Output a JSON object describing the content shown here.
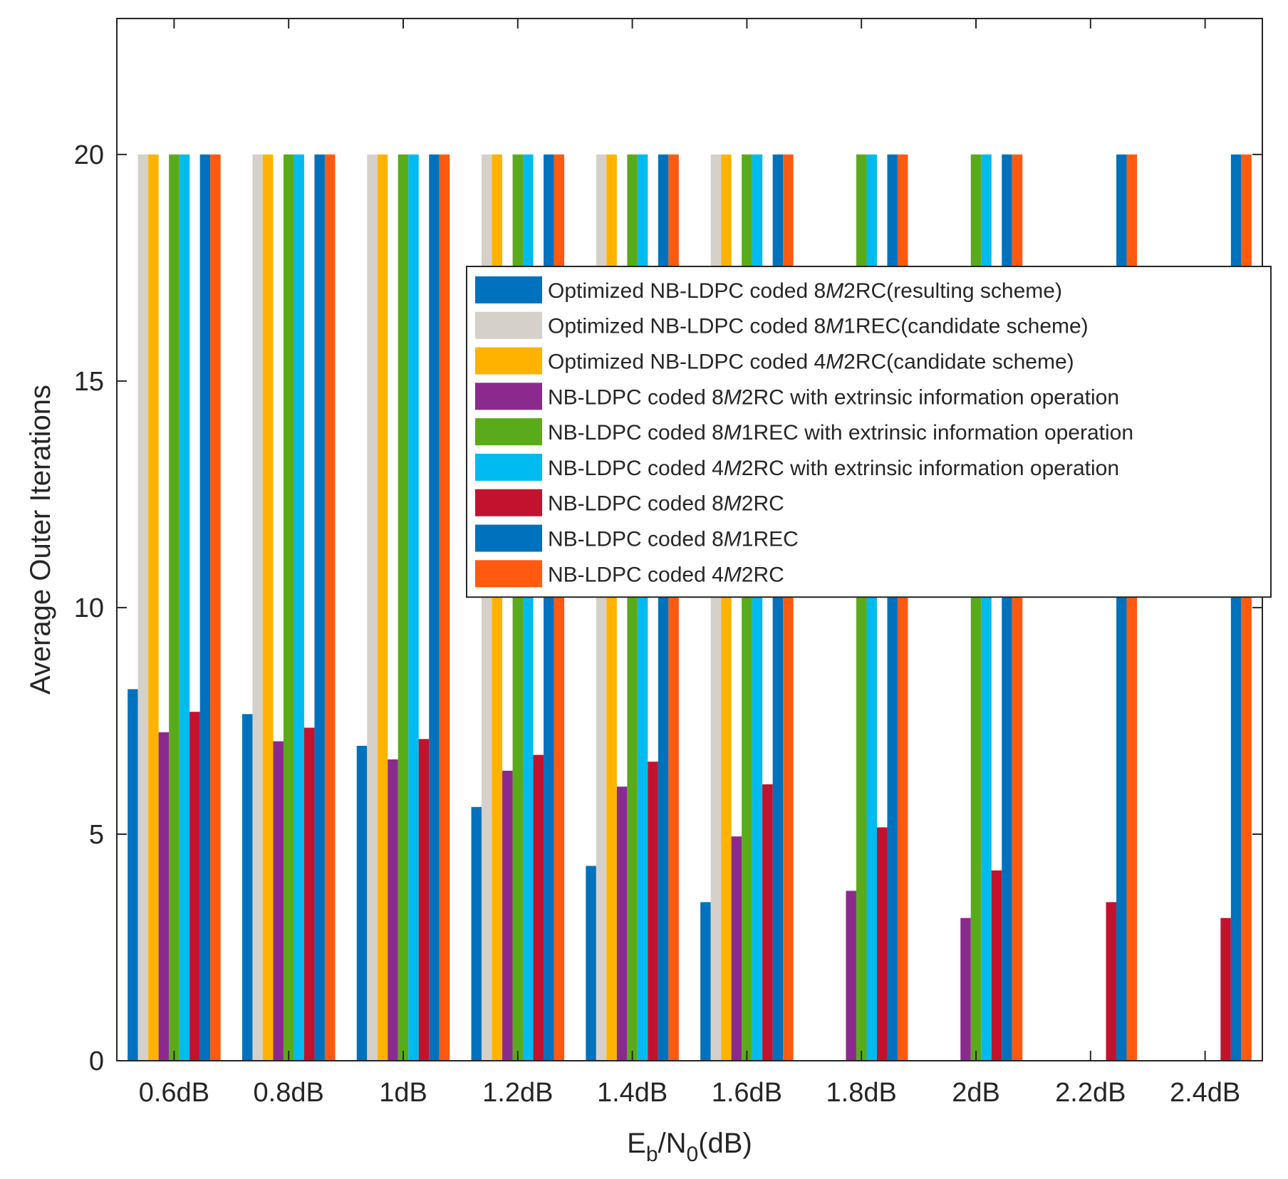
{
  "chart_data": {
    "type": "bar",
    "title": "",
    "xlabel": {
      "main": "E",
      "sub1": "b",
      "mid": "/N",
      "sub2": "0",
      "tail": "(dB)"
    },
    "ylabel": "Average Outer Iterations",
    "ylim": [
      0,
      23
    ],
    "yticks": [
      "0",
      "5",
      "10",
      "15",
      "20"
    ],
    "ytick_values": [
      0,
      5,
      10,
      15,
      20
    ],
    "grid": false,
    "legend_position": "center-right",
    "categories": [
      "0.6dB",
      "0.8dB",
      "1dB",
      "1.2dB",
      "1.4dB",
      "1.6dB",
      "1.8dB",
      "2dB",
      "2.2dB",
      "2.4dB"
    ],
    "series": [
      {
        "name": {
          "pre": "Optimized NB-LDPC coded 8",
          "it": "M",
          "post": "2RC(resulting scheme)"
        },
        "color": "#0072BD",
        "values": [
          8.2,
          7.65,
          6.95,
          5.6,
          4.3,
          3.5,
          0,
          0,
          0,
          0
        ]
      },
      {
        "name": {
          "pre": "Optimized NB-LDPC coded 8",
          "it": "M",
          "post": "1REC(candidate scheme)"
        },
        "color": "#D5D0CA",
        "values": [
          20,
          20,
          20,
          20,
          20,
          20,
          0,
          0,
          0,
          0
        ]
      },
      {
        "name": {
          "pre": "Optimized NB-LDPC coded 4",
          "it": "M",
          "post": "2RC(candidate scheme)"
        },
        "color": "#FFB300",
        "values": [
          20,
          20,
          20,
          20,
          20,
          20,
          0,
          0,
          0,
          0
        ]
      },
      {
        "name": {
          "pre": "NB-LDPC coded 8",
          "it": "M",
          "post": "2RC with extrinsic information operation"
        },
        "color": "#8B2A8E",
        "values": [
          7.25,
          7.05,
          6.65,
          6.4,
          6.05,
          4.95,
          3.75,
          3.15,
          0,
          0
        ]
      },
      {
        "name": {
          "pre": "NB-LDPC coded 8",
          "it": "M",
          "post": "1REC with extrinsic information operation"
        },
        "color": "#5AAB1A",
        "values": [
          20,
          20,
          20,
          20,
          20,
          20,
          20,
          20,
          0,
          0
        ]
      },
      {
        "name": {
          "pre": "NB-LDPC coded 4",
          "it": "M",
          "post": "2RC with extrinsic information operation"
        },
        "color": "#00BBEF",
        "values": [
          20,
          20,
          20,
          20,
          20,
          20,
          20,
          20,
          0,
          0
        ]
      },
      {
        "name": {
          "pre": "NB-LDPC coded 8",
          "it": "M",
          "post": "2RC"
        },
        "color": "#C2122E",
        "values": [
          7.7,
          7.35,
          7.1,
          6.75,
          6.6,
          6.1,
          5.15,
          4.2,
          3.5,
          3.15
        ]
      },
      {
        "name": {
          "pre": "NB-LDPC coded 8",
          "it": "M",
          "post": "1REC"
        },
        "color": "#0072BD",
        "values": [
          20,
          20,
          20,
          20,
          20,
          20,
          20,
          20,
          20,
          20
        ]
      },
      {
        "name": {
          "pre": "NB-LDPC coded 4",
          "it": "M",
          "post": "2RC"
        },
        "color": "#FF5A0F",
        "values": [
          20,
          20,
          20,
          20,
          20,
          20,
          20,
          20,
          20,
          20
        ]
      }
    ]
  }
}
